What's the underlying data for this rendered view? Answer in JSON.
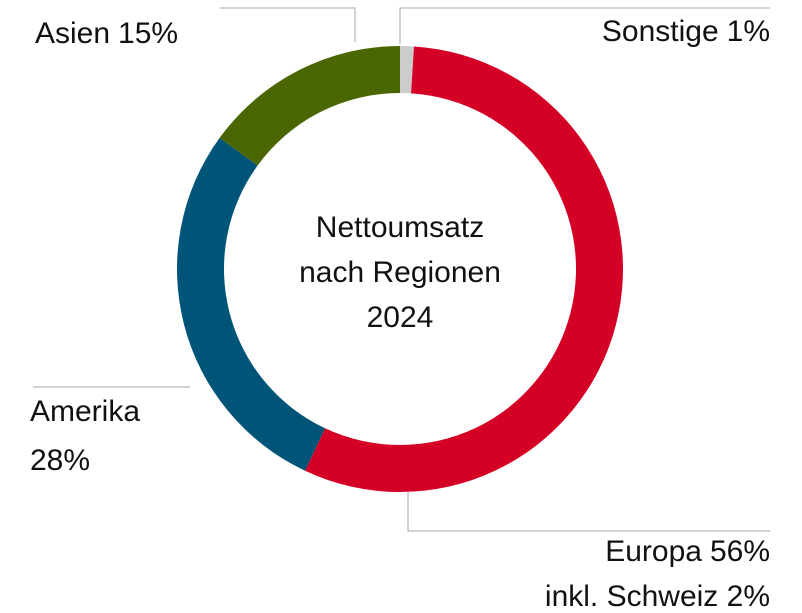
{
  "chart_data": {
    "type": "donut",
    "title": [
      "Nettoumsatz",
      "nach Regionen",
      "2024"
    ],
    "categories": [
      "Sonstige",
      "Europa",
      "Amerika",
      "Asien"
    ],
    "values": [
      1,
      56,
      28,
      15
    ],
    "value_labels": [
      "1%",
      "56%",
      "28%",
      "15%"
    ],
    "colors": [
      "#cccccc",
      "#d50025",
      "#005478",
      "#4a6600"
    ],
    "annotations": [
      "inkl. Schweiz 2%"
    ]
  }
}
